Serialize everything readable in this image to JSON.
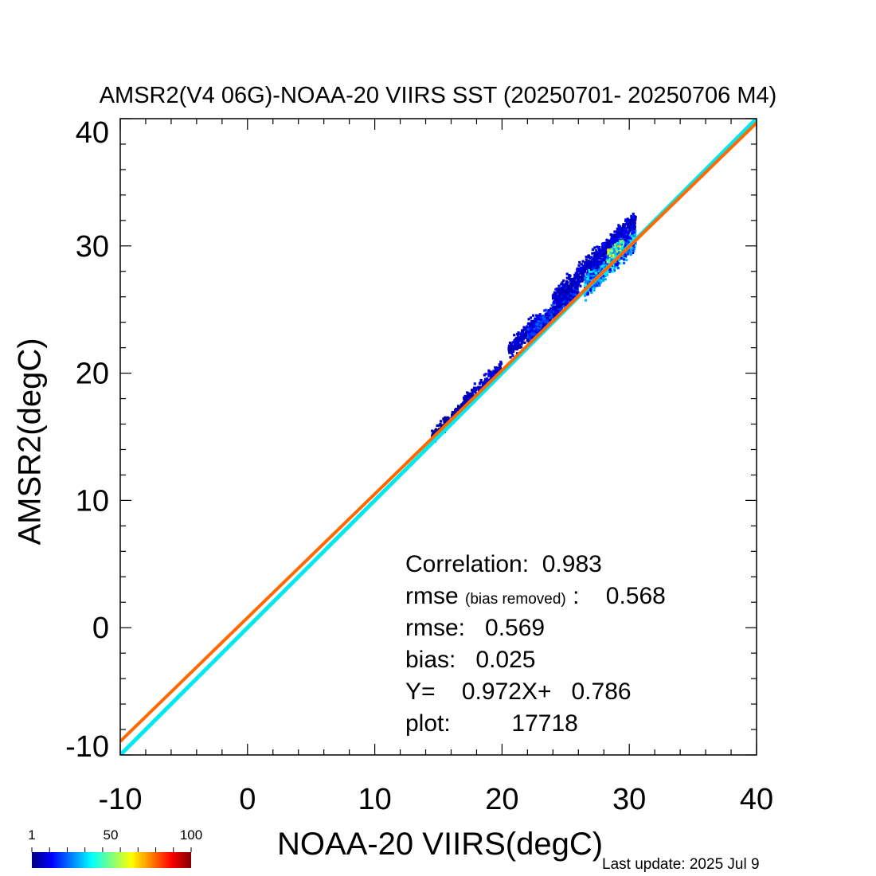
{
  "chart_data": {
    "type": "scatter",
    "title": "AMSR2(V4 06G)-NOAA-20 VIIRS SST (20250701- 20250706 M4)",
    "xlabel": "NOAA-20 VIIRS(degC)",
    "ylabel": "AMSR2(degC)",
    "xlim": [
      -10,
      40
    ],
    "ylim": [
      -10,
      40
    ],
    "xticks": [
      -10,
      0,
      10,
      20,
      30,
      40
    ],
    "yticks": [
      -10,
      0,
      10,
      20,
      30,
      40
    ],
    "grid": false,
    "density_colorbar": {
      "ticks": [
        "1",
        "50",
        "100"
      ],
      "min": 1,
      "max": 100,
      "colormap": "jet"
    },
    "regression_line": {
      "slope": 0.972,
      "intercept": 0.786,
      "color": "#ff6a00"
    },
    "identity_line": {
      "slope": 1,
      "intercept": 0,
      "color": "#00e8f0"
    },
    "density_clusters": [
      {
        "x_range": [
          14.5,
          17.5
        ],
        "y_center_offset": 0.1,
        "spread": 0.5,
        "count": 220,
        "level": 5
      },
      {
        "x_range": [
          17,
          20
        ],
        "y_center_offset": 0.4,
        "spread": 0.5,
        "count": 160,
        "level": 8
      },
      {
        "x_range": [
          20.5,
          23
        ],
        "y_center_offset": 1.0,
        "spread": 0.7,
        "count": 260,
        "level": 8
      },
      {
        "x_range": [
          22,
          26
        ],
        "y_center_offset": 0.7,
        "spread": 0.6,
        "count": 520,
        "level": 15
      },
      {
        "x_range": [
          24,
          27.5
        ],
        "y_center_offset": 1.5,
        "spread": 0.9,
        "count": 360,
        "level": 8
      },
      {
        "x_range": [
          26.5,
          30.5
        ],
        "y_center_offset": 0.2,
        "spread": 0.8,
        "count": 900,
        "level": 25
      },
      {
        "x_range": [
          27,
          30.5
        ],
        "y_center_offset": 1.6,
        "spread": 0.7,
        "count": 420,
        "level": 10
      },
      {
        "x_range": [
          28.3,
          29.5
        ],
        "y_center_offset": 0.8,
        "spread": 0.4,
        "count": 200,
        "level": 45
      }
    ],
    "stats": {
      "correlation_label": "Correlation:",
      "correlation": "0.983",
      "rmse_br_label": "rmse",
      "rmse_br_note": "(bias removed)",
      "rmse_br_sep": ":",
      "rmse_br": "0.568",
      "rmse_label": "rmse:",
      "rmse": "0.569",
      "bias_label": "bias:",
      "bias": "0.025",
      "fit_label": "Y=",
      "fit_slope": "0.972X+",
      "fit_intercept": "0.786",
      "plot_label": "plot:",
      "plot_count": "17718"
    }
  },
  "footer": {
    "last_update": "Last update: 2025 Jul  9"
  }
}
